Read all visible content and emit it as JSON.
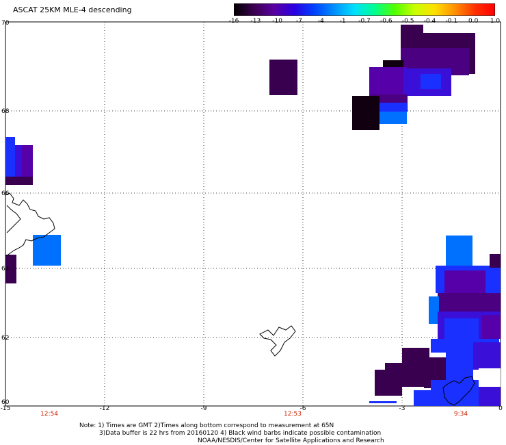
{
  "header": {
    "title": "ASCAT 25KM MLE-4 descending"
  },
  "colorbar": {
    "labels": [
      "-16",
      "-13",
      "-10",
      "-7",
      "-4",
      "-1",
      "-0.7",
      "-0.6",
      "-0.5",
      "-0.4",
      "-0.1",
      "0.0",
      "1.0"
    ],
    "colors": [
      "#000000",
      "#3a0050",
      "#5a00a0",
      "#2a00e0",
      "#0040ff",
      "#0090ff",
      "#00e0ff",
      "#00ff90",
      "#50ff00",
      "#c8ff00",
      "#ffe000",
      "#ff9000",
      "#ff3000",
      "#ff0000"
    ]
  },
  "axes": {
    "lat_labels": [
      "70",
      "68",
      "66",
      "64",
      "62",
      "60"
    ],
    "lon_labels": [
      "-15",
      "-12",
      "-9",
      "-6",
      "-3",
      "0"
    ]
  },
  "times": [
    "12:54",
    "12:53",
    "9:34"
  ],
  "notes": {
    "line1": "Note: 1) Times are GMT 2)Times along bottom correspond to measurement at 65N",
    "line2": "3)Data buffer is 22 hrs from 20160120 4) Black wind barbs indicate possible contamination",
    "line3": "NOAA/NESDIS/Center for Satellite Applications and Research"
  },
  "swath": {
    "color_key": {
      "black": "#100010",
      "darkpurple": "#3a0050",
      "purple": "#5500a8",
      "indigo": "#3a10d8",
      "blue": "#1a30ff",
      "lightblue": "#0070ff"
    }
  }
}
